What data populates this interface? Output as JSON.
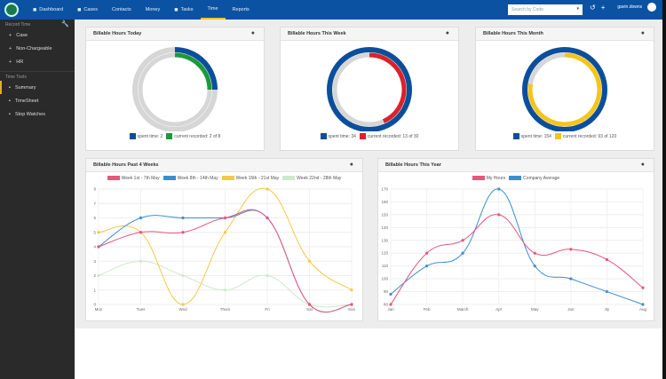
{
  "topbar": {
    "nav": [
      {
        "label": "Dashboard",
        "icon": "dashboard-icon"
      },
      {
        "label": "Cases",
        "icon": "briefcase-icon"
      },
      {
        "label": "Contacts"
      },
      {
        "label": "Money"
      },
      {
        "label": "Tasks",
        "icon": "list-icon"
      },
      {
        "label": "Time",
        "active": true
      },
      {
        "label": "Reports"
      }
    ],
    "search_placeholder": "Search by Code",
    "user": "gavin.downs"
  },
  "sidebar": {
    "record_header": "Record Time",
    "record_items": [
      "Case",
      "Non-Chargeable",
      "HR"
    ],
    "tools_header": "Time Tools",
    "tools_items": [
      "Summary",
      "TimeSheet",
      "Stop Watches"
    ]
  },
  "colors": {
    "blue": "#0b4f9c",
    "green": "#1a9a3a",
    "red": "#d9232b",
    "yellow": "#f5c518",
    "grey": "#d6d6d6"
  },
  "donuts": [
    {
      "title": "Billable Hours Today",
      "spent_label": "spent time: 2",
      "recorded_label": "current recorded: 2 of 8",
      "outer": 0.25,
      "inner": 0.25,
      "inner_color": "#1a9a3a"
    },
    {
      "title": "Billable Hours This Week",
      "spent_label": "spent time: 34",
      "recorded_label": "current recorded: 13 of 30",
      "outer": 1.0,
      "inner": 0.433,
      "inner_color": "#d9232b"
    },
    {
      "title": "Billable Hours This Month",
      "spent_label": "spent time: 154",
      "recorded_label": "current recorded: 93 of 120",
      "outer": 1.0,
      "inner": 0.775,
      "inner_color": "#f5c518"
    }
  ],
  "chart_data": [
    {
      "type": "line",
      "title": "Billable Hours Past 4 Weeks",
      "categories": [
        "Mon",
        "Tues",
        "Wed",
        "Thurs",
        "Fri",
        "Sat",
        "Sun"
      ],
      "ylim": [
        0,
        8
      ],
      "yticks": [
        0,
        1,
        2,
        3,
        4,
        5,
        6,
        7,
        8
      ],
      "series": [
        {
          "name": "Week 1st - 7th May",
          "color": "#e8557a",
          "values": [
            4,
            5,
            5,
            6,
            6,
            0,
            0
          ]
        },
        {
          "name": "Week 8th - 14th May",
          "color": "#3b8fd0",
          "values": [
            4,
            6,
            6,
            6,
            6,
            0,
            0
          ]
        },
        {
          "name": "Week 15th - 21st May",
          "color": "#f5c84a",
          "values": [
            5,
            5,
            0,
            5,
            8,
            3,
            1
          ]
        },
        {
          "name": "Week 22nd - 28th May",
          "color": "#cde9cc",
          "values": [
            2,
            3,
            2,
            1,
            2,
            0,
            0
          ]
        }
      ]
    },
    {
      "type": "line",
      "title": "Billable Hours This Year",
      "categories": [
        "Jan",
        "Feb",
        "March",
        "Apr",
        "May",
        "Jun",
        "Jly",
        "Aug"
      ],
      "ylim": [
        80,
        170
      ],
      "yticks": [
        80,
        90,
        100,
        110,
        120,
        130,
        140,
        150,
        160,
        170
      ],
      "series": [
        {
          "name": "My Hours",
          "color": "#e8557a",
          "values": [
            80,
            120,
            130,
            150,
            120,
            123,
            115,
            93
          ]
        },
        {
          "name": "Company Average",
          "color": "#3b8fd0",
          "values": [
            88,
            110,
            120,
            170,
            110,
            100,
            90,
            80
          ]
        }
      ]
    }
  ]
}
